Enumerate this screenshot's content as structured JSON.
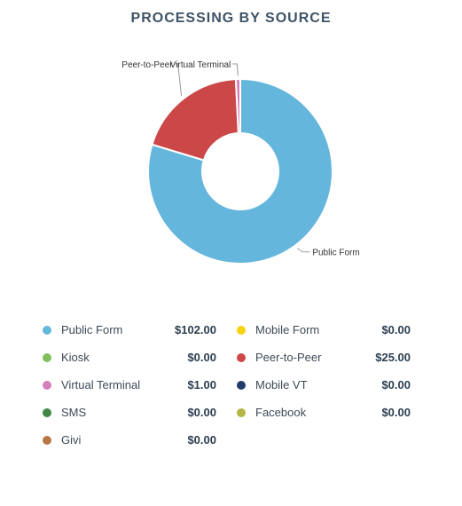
{
  "chart_data": {
    "type": "pie",
    "title": "PROCESSING BY SOURCE",
    "donut": true,
    "slices": [
      {
        "name": "Public Form",
        "value": 102.0,
        "display": "$102.00",
        "color": "#65b6dc",
        "show_label": true
      },
      {
        "name": "Mobile Form",
        "value": 0.0,
        "display": "$0.00",
        "color": "#f7d20e",
        "show_label": false
      },
      {
        "name": "Kiosk",
        "value": 0.0,
        "display": "$0.00",
        "color": "#7fbf5d",
        "show_label": false
      },
      {
        "name": "Peer-to-Peer",
        "value": 25.0,
        "display": "$25.00",
        "color": "#cc4848",
        "show_label": true
      },
      {
        "name": "Virtual Terminal",
        "value": 1.0,
        "display": "$1.00",
        "color": "#d581b9",
        "show_label": true
      },
      {
        "name": "Mobile VT",
        "value": 0.0,
        "display": "$0.00",
        "color": "#233c6b",
        "show_label": false
      },
      {
        "name": "SMS",
        "value": 0.0,
        "display": "$0.00",
        "color": "#3f8744",
        "show_label": false
      },
      {
        "name": "Facebook",
        "value": 0.0,
        "display": "$0.00",
        "color": "#b4b545",
        "show_label": false
      },
      {
        "name": "Givi",
        "value": 0.0,
        "display": "$0.00",
        "color": "#b97645",
        "show_label": false
      }
    ],
    "legend_order": [
      "Public Form",
      "Mobile Form",
      "Kiosk",
      "Peer-to-Peer",
      "Virtual Terminal",
      "Mobile VT",
      "SMS",
      "Facebook",
      "Givi"
    ],
    "legend_position": "bottom"
  }
}
